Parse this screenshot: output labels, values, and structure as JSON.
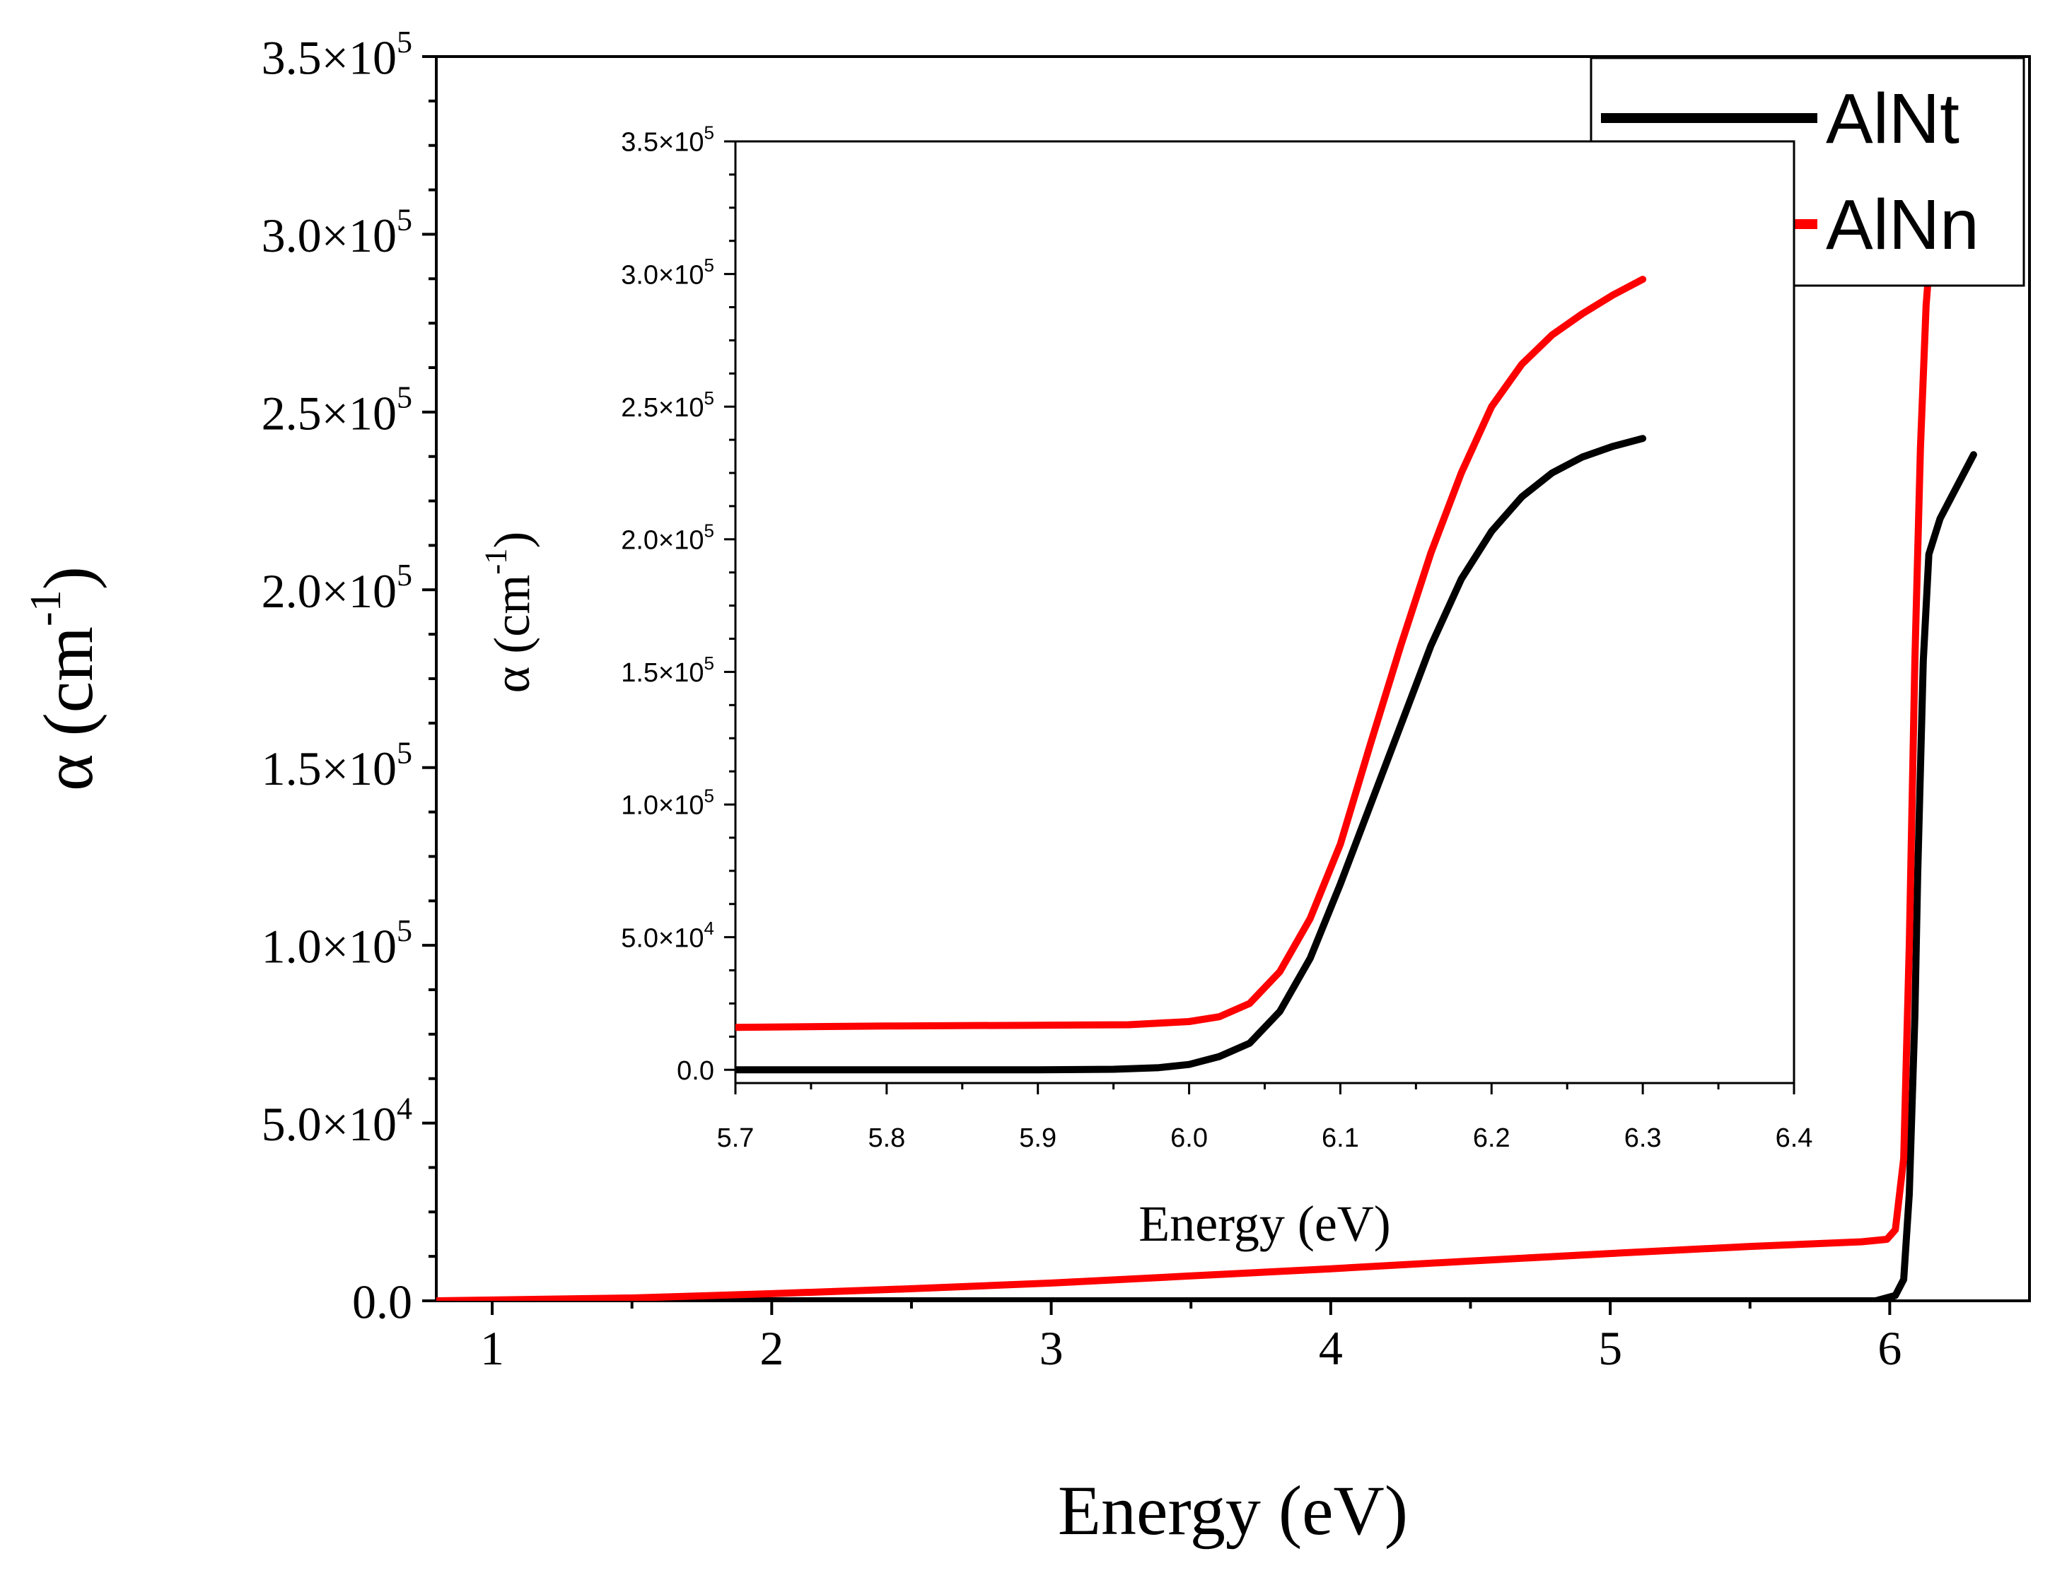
{
  "chart_data": [
    {
      "type": "line",
      "role": "main",
      "xlabel": "Energy (eV)",
      "ylabel": "α (cm-1)",
      "ylabel_parts": {
        "symbol": "α",
        "unit_base": "cm",
        "unit_exp": "-1"
      },
      "xlim": [
        0.8,
        6.5
      ],
      "ylim": [
        0,
        350000
      ],
      "xticks": [
        {
          "value": 1,
          "label": "1"
        },
        {
          "value": 2,
          "label": "2"
        },
        {
          "value": 3,
          "label": "3"
        },
        {
          "value": 4,
          "label": "4"
        },
        {
          "value": 5,
          "label": "5"
        },
        {
          "value": 6,
          "label": "6"
        }
      ],
      "yticks": [
        {
          "value": 0,
          "mant": "0.0",
          "exp": ""
        },
        {
          "value": 50000,
          "mant": "5.0×10",
          "exp": "4"
        },
        {
          "value": 100000,
          "mant": "1.0×10",
          "exp": "5"
        },
        {
          "value": 150000,
          "mant": "1.5×10",
          "exp": "5"
        },
        {
          "value": 200000,
          "mant": "2.0×10",
          "exp": "5"
        },
        {
          "value": 250000,
          "mant": "2.5×10",
          "exp": "5"
        },
        {
          "value": 300000,
          "mant": "3.0×10",
          "exp": "5"
        },
        {
          "value": 350000,
          "mant": "3.5×10",
          "exp": "5"
        }
      ],
      "legend": {
        "position": "top-right",
        "entries": [
          "AlNt",
          "AlNn"
        ]
      },
      "series": [
        {
          "name": "AlNt",
          "color": "#000000",
          "points": [
            [
              0.8,
              0
            ],
            [
              2,
              0
            ],
            [
              3,
              0
            ],
            [
              4,
              0
            ],
            [
              5,
              0
            ],
            [
              5.95,
              0
            ],
            [
              6.02,
              1500
            ],
            [
              6.05,
              6000
            ],
            [
              6.07,
              30000
            ],
            [
              6.09,
              80000
            ],
            [
              6.1,
              120000
            ],
            [
              6.12,
              180000
            ],
            [
              6.14,
              210000
            ],
            [
              6.18,
              220000
            ],
            [
              6.22,
              226000
            ],
            [
              6.28,
              235000
            ],
            [
              6.3,
              238000
            ]
          ]
        },
        {
          "name": "AlNn",
          "color": "#ff0000",
          "points": [
            [
              0.8,
              0
            ],
            [
              1.5,
              800
            ],
            [
              2,
              2000
            ],
            [
              2.5,
              3400
            ],
            [
              3,
              5000
            ],
            [
              3.5,
              7000
            ],
            [
              4,
              9000
            ],
            [
              4.5,
              11200
            ],
            [
              5,
              13300
            ],
            [
              5.5,
              15300
            ],
            [
              5.9,
              16600
            ],
            [
              5.99,
              17300
            ],
            [
              6.02,
              20000
            ],
            [
              6.05,
              40000
            ],
            [
              6.07,
              100000
            ],
            [
              6.09,
              180000
            ],
            [
              6.11,
              240000
            ],
            [
              6.13,
              280000
            ],
            [
              6.16,
              310000
            ],
            [
              6.2,
              330000
            ],
            [
              6.23,
              345000
            ]
          ]
        }
      ]
    },
    {
      "type": "line",
      "role": "inset",
      "xlabel": "Energy (eV)",
      "ylabel": "α (cm-1)",
      "ylabel_parts": {
        "symbol": "α",
        "unit_base": "cm",
        "unit_exp": "-1"
      },
      "xlim": [
        5.7,
        6.4
      ],
      "ylim": [
        -5000,
        350000
      ],
      "xticks": [
        {
          "value": 5.7,
          "label": "5.7"
        },
        {
          "value": 5.8,
          "label": "5.8"
        },
        {
          "value": 5.9,
          "label": "5.9"
        },
        {
          "value": 6.0,
          "label": "6.0"
        },
        {
          "value": 6.1,
          "label": "6.1"
        },
        {
          "value": 6.2,
          "label": "6.2"
        },
        {
          "value": 6.3,
          "label": "6.3"
        },
        {
          "value": 6.4,
          "label": "6.4"
        }
      ],
      "yticks": [
        {
          "value": 0,
          "mant": "0.0",
          "exp": ""
        },
        {
          "value": 50000,
          "mant": "5.0×10",
          "exp": "4"
        },
        {
          "value": 100000,
          "mant": "1.0×10",
          "exp": "5"
        },
        {
          "value": 150000,
          "mant": "1.5×10",
          "exp": "5"
        },
        {
          "value": 200000,
          "mant": "2.0×10",
          "exp": "5"
        },
        {
          "value": 250000,
          "mant": "2.5×10",
          "exp": "5"
        },
        {
          "value": 300000,
          "mant": "3.0×10",
          "exp": "5"
        },
        {
          "value": 350000,
          "mant": "3.5×10",
          "exp": "5"
        }
      ],
      "series": [
        {
          "name": "AlNt",
          "color": "#000000",
          "points": [
            [
              5.7,
              0
            ],
            [
              5.8,
              0
            ],
            [
              5.9,
              0
            ],
            [
              5.95,
              200
            ],
            [
              5.98,
              800
            ],
            [
              6.0,
              2000
            ],
            [
              6.02,
              5000
            ],
            [
              6.04,
              10000
            ],
            [
              6.06,
              22000
            ],
            [
              6.08,
              42000
            ],
            [
              6.1,
              70000
            ],
            [
              6.12,
              100000
            ],
            [
              6.14,
              130000
            ],
            [
              6.16,
              160000
            ],
            [
              6.18,
              185000
            ],
            [
              6.2,
              203000
            ],
            [
              6.22,
              216000
            ],
            [
              6.24,
              225000
            ],
            [
              6.26,
              231000
            ],
            [
              6.28,
              235000
            ],
            [
              6.3,
              238000
            ]
          ]
        },
        {
          "name": "AlNn",
          "color": "#ff0000",
          "points": [
            [
              5.7,
              16000
            ],
            [
              5.8,
              16500
            ],
            [
              5.9,
              16800
            ],
            [
              5.96,
              17000
            ],
            [
              6.0,
              18200
            ],
            [
              6.02,
              20000
            ],
            [
              6.04,
              25000
            ],
            [
              6.06,
              37000
            ],
            [
              6.08,
              57000
            ],
            [
              6.1,
              85000
            ],
            [
              6.12,
              123000
            ],
            [
              6.14,
              160000
            ],
            [
              6.16,
              195000
            ],
            [
              6.18,
              225000
            ],
            [
              6.2,
              250000
            ],
            [
              6.22,
              266000
            ],
            [
              6.24,
              277000
            ],
            [
              6.26,
              285000
            ],
            [
              6.28,
              292000
            ],
            [
              6.3,
              298000
            ]
          ]
        }
      ]
    }
  ]
}
